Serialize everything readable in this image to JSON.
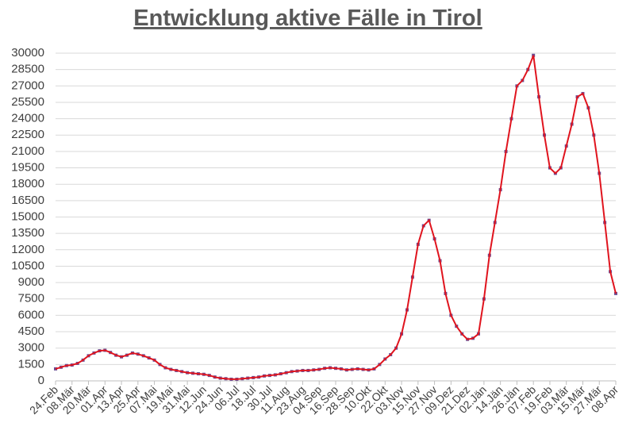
{
  "chart_data": {
    "type": "line",
    "title": "Entwicklung aktive Fälle in Tirol",
    "categories": [
      "24.Feb",
      null,
      null,
      "08.Mär",
      null,
      null,
      "20.Mär",
      null,
      null,
      "01.Apr",
      null,
      null,
      "13.Apr",
      null,
      null,
      "25.Apr",
      null,
      null,
      "07.Mai",
      null,
      null,
      "19.Mai",
      null,
      null,
      "31.Mai",
      null,
      null,
      "12.Jun",
      null,
      null,
      "24.Jun",
      null,
      null,
      "06.Jul",
      null,
      null,
      "18.Jul",
      null,
      null,
      "30.Jul",
      null,
      null,
      "11.Aug",
      null,
      null,
      "23.Aug",
      null,
      null,
      "04.Sep",
      null,
      null,
      "16.Sep",
      null,
      null,
      "28.Sep",
      null,
      null,
      "10.Okt",
      null,
      null,
      "22.Okt",
      null,
      null,
      "03.Nov",
      null,
      null,
      "15.Nov",
      null,
      null,
      "27.Nov",
      null,
      null,
      "09.Dez",
      null,
      null,
      "21.Dez",
      null,
      null,
      "02.Jän",
      null,
      null,
      "14.Jän",
      null,
      null,
      "26.Jän",
      null,
      null,
      "07.Feb",
      null,
      null,
      "19.Feb",
      null,
      null,
      "03.Mär",
      null,
      null,
      "15.Mär",
      null,
      null,
      "27.Mär",
      null,
      null,
      "08.Apr"
    ],
    "series": [
      {
        "color": "#e0141e",
        "marker_color": "#6a4c93",
        "values": [
          1100,
          1250,
          1400,
          1450,
          1600,
          1900,
          2300,
          2550,
          2750,
          2800,
          2600,
          2350,
          2200,
          2350,
          2550,
          2450,
          2300,
          2100,
          1900,
          1500,
          1200,
          1050,
          950,
          850,
          750,
          700,
          650,
          600,
          500,
          350,
          250,
          200,
          150,
          150,
          200,
          250,
          300,
          350,
          450,
          500,
          550,
          650,
          750,
          850,
          900,
          950,
          950,
          1000,
          1050,
          1150,
          1200,
          1150,
          1100,
          1000,
          1050,
          1100,
          1050,
          1000,
          1100,
          1500,
          2000,
          2400,
          3000,
          4300,
          6500,
          9500,
          12500,
          14200,
          14700,
          13000,
          11000,
          8000,
          6000,
          5000,
          4300,
          3800,
          3900,
          4300,
          7500,
          11500,
          14500,
          17500,
          21000,
          24000,
          27000,
          27500,
          28500,
          29800,
          26000,
          22500,
          19500,
          19000,
          19500,
          21500,
          23500,
          26000,
          26300,
          25000,
          22500,
          19000,
          14500,
          10000,
          8000
        ]
      }
    ],
    "ylim": [
      0,
      30000
    ],
    "yticks": [
      0,
      1500,
      3000,
      4500,
      6000,
      7500,
      9000,
      10500,
      12000,
      13500,
      15000,
      16500,
      18000,
      19500,
      21000,
      22500,
      24000,
      25500,
      27000,
      28500,
      30000
    ],
    "grid": true
  }
}
